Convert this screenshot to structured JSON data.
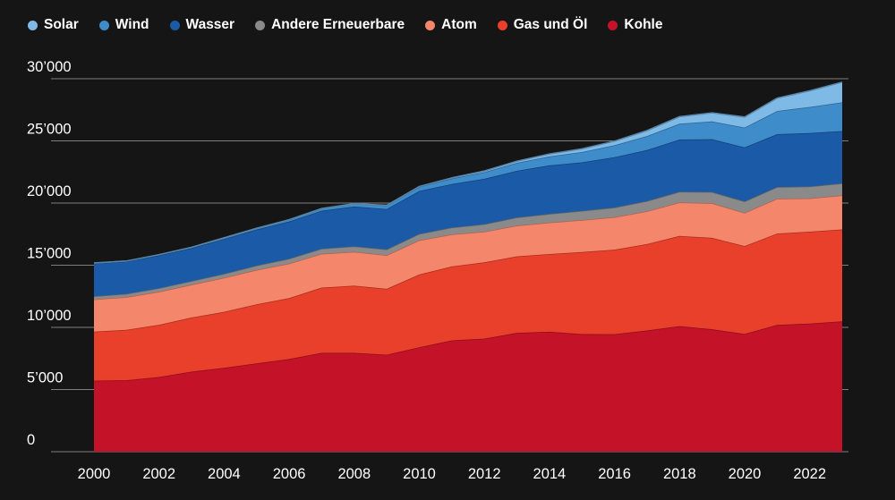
{
  "legend": {
    "items": [
      {
        "label": "Solar",
        "color": "#7fb9e6"
      },
      {
        "label": "Wind",
        "color": "#3f8cca"
      },
      {
        "label": "Wasser",
        "color": "#1a5aa6"
      },
      {
        "label": "Andere Erneuerbare",
        "color": "#8a8a8a"
      },
      {
        "label": "Atom",
        "color": "#f4876b"
      },
      {
        "label": "Gas und Öl",
        "color": "#e8402a"
      },
      {
        "label": "Kohle",
        "color": "#c41228"
      }
    ]
  },
  "chart_data": {
    "type": "area",
    "stacked": true,
    "title": "",
    "xlabel": "",
    "ylabel": "",
    "grid": "horizontal",
    "legend_position": "top-left",
    "ylim": [
      0,
      30000
    ],
    "ytick_values": [
      0,
      5000,
      10000,
      15000,
      20000,
      25000,
      30000
    ],
    "ytick_labels": [
      "0",
      "5’000",
      "10’000",
      "15’000",
      "20’000",
      "25’000",
      "30’000"
    ],
    "xtick_values": [
      2000,
      2002,
      2004,
      2006,
      2008,
      2010,
      2012,
      2014,
      2016,
      2018,
      2020,
      2022
    ],
    "x": [
      2000,
      2001,
      2002,
      2003,
      2004,
      2005,
      2006,
      2007,
      2008,
      2009,
      2010,
      2011,
      2012,
      2013,
      2014,
      2015,
      2016,
      2017,
      2018,
      2019,
      2020,
      2021,
      2022,
      2023
    ],
    "series": [
      {
        "id": "kohle",
        "name": "Kohle",
        "color": "#c41228",
        "values": [
          5710,
          5750,
          6010,
          6440,
          6750,
          7100,
          7450,
          7950,
          7950,
          7800,
          8400,
          8950,
          9090,
          9560,
          9650,
          9460,
          9450,
          9750,
          10100,
          9850,
          9470,
          10200,
          10300,
          10480
        ]
      },
      {
        "id": "gas-oel",
        "name": "Gas und Öl",
        "color": "#e8402a",
        "values": [
          3950,
          4050,
          4200,
          4350,
          4500,
          4750,
          4900,
          5250,
          5400,
          5300,
          5850,
          5950,
          6150,
          6150,
          6250,
          6600,
          6800,
          6950,
          7250,
          7350,
          7070,
          7350,
          7400,
          7400
        ]
      },
      {
        "id": "atom",
        "name": "Atom",
        "color": "#f4876b",
        "values": [
          2590,
          2640,
          2660,
          2640,
          2740,
          2770,
          2790,
          2720,
          2730,
          2700,
          2760,
          2580,
          2460,
          2480,
          2530,
          2570,
          2610,
          2640,
          2700,
          2790,
          2670,
          2800,
          2680,
          2740
        ]
      },
      {
        "id": "andere-erneuerbare",
        "name": "Andere Erneuerbare",
        "color": "#8a8a8a",
        "values": [
          250,
          260,
          280,
          300,
          320,
          350,
          380,
          410,
          440,
          470,
          510,
          550,
          600,
          650,
          700,
          740,
          780,
          820,
          860,
          900,
          920,
          940,
          950,
          960
        ]
      },
      {
        "id": "wasser",
        "name": "Wasser",
        "color": "#1a5aa6",
        "values": [
          2650,
          2600,
          2650,
          2650,
          2800,
          2900,
          3000,
          3050,
          3200,
          3250,
          3450,
          3500,
          3650,
          3750,
          3900,
          3900,
          4050,
          4100,
          4200,
          4250,
          4350,
          4250,
          4300,
          4210
        ]
      },
      {
        "id": "wind",
        "name": "Wind",
        "color": "#3f8cca",
        "values": [
          30,
          40,
          50,
          60,
          90,
          100,
          130,
          170,
          220,
          280,
          340,
          440,
          530,
          650,
          720,
          830,
          960,
          1130,
          1270,
          1420,
          1590,
          1860,
          2100,
          2310
        ]
      },
      {
        "id": "solar",
        "name": "Solar",
        "color": "#7fb9e6",
        "values": [
          0,
          0,
          0,
          0,
          0,
          0,
          10,
          10,
          10,
          20,
          30,
          60,
          100,
          130,
          200,
          260,
          330,
          440,
          570,
          700,
          850,
          1040,
          1300,
          1630
        ]
      }
    ]
  }
}
